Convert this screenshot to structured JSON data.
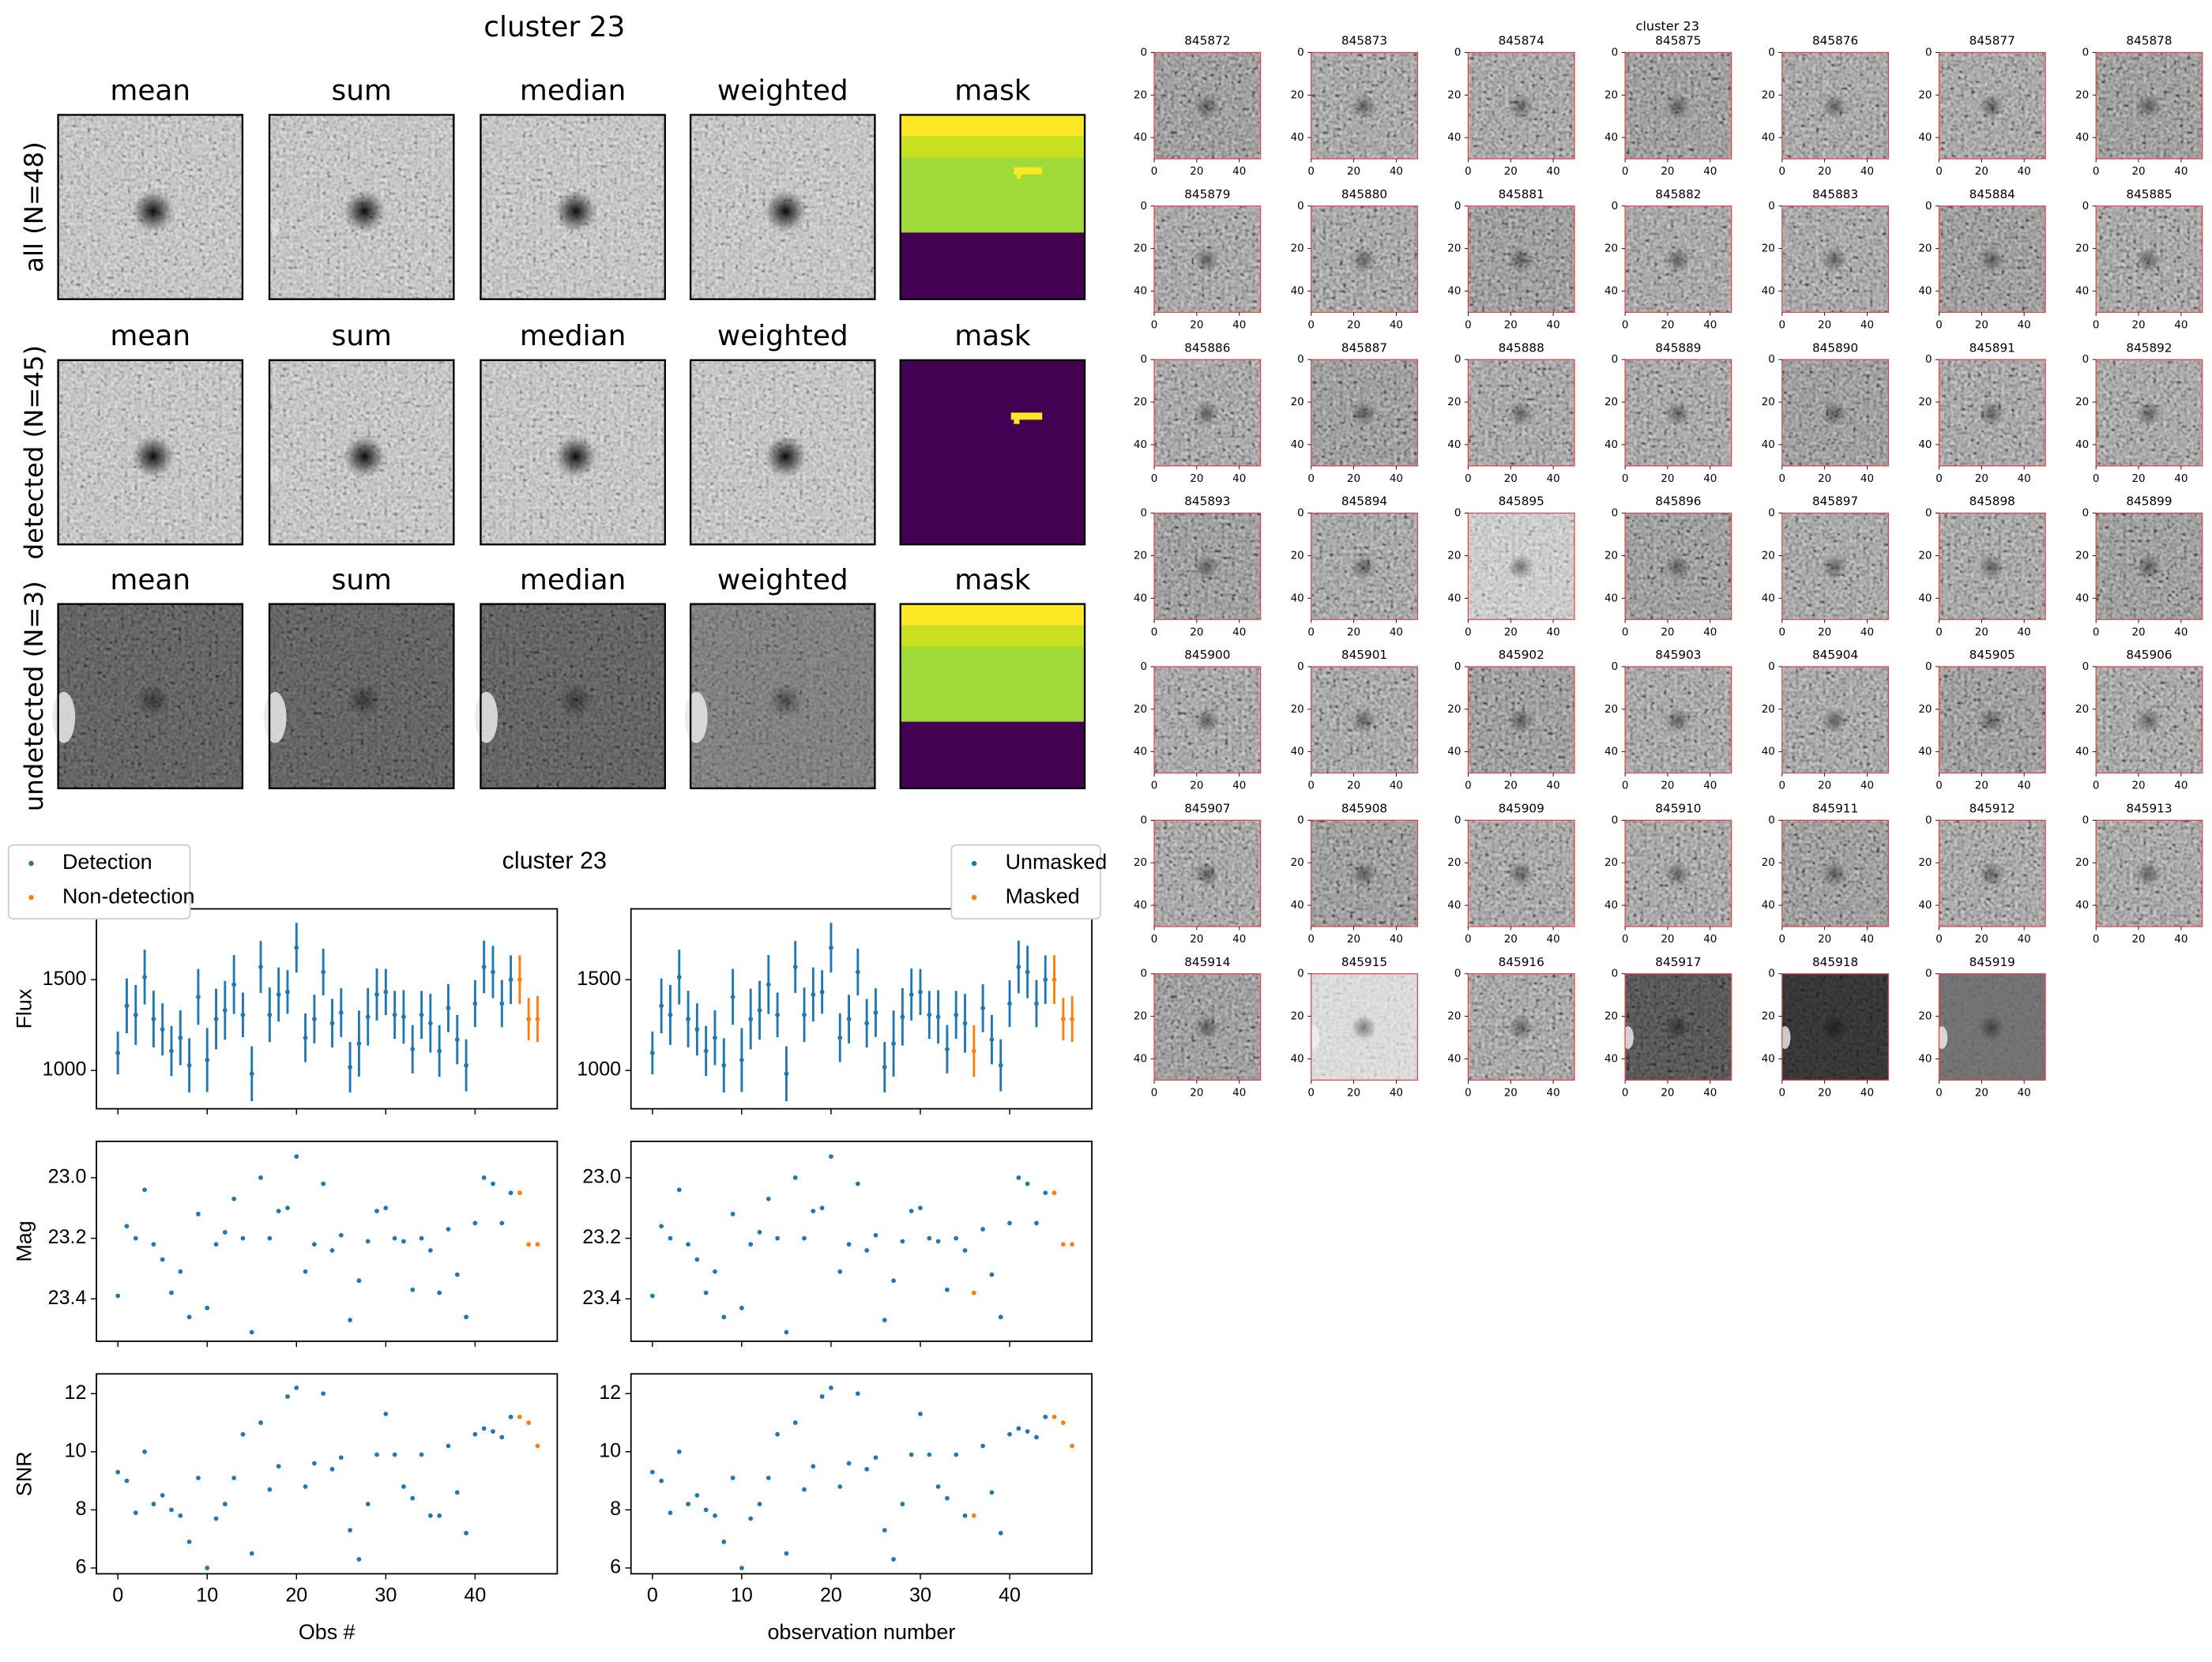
{
  "title": "cluster 23",
  "stamp_panels": {
    "columns": [
      "mean",
      "sum",
      "median",
      "weighted",
      "mask"
    ],
    "rows": [
      "all (N=48)",
      "detected (N=45)",
      "undetected (N=3)"
    ]
  },
  "thumbnails": {
    "title": "cluster 23",
    "ticks": [
      0,
      20,
      40
    ],
    "ids": [
      "845872",
      "845873",
      "845874",
      "845875",
      "845876",
      "845877",
      "845878",
      "845879",
      "845880",
      "845881",
      "845882",
      "845883",
      "845884",
      "845885",
      "845886",
      "845887",
      "845888",
      "845889",
      "845890",
      "845891",
      "845892",
      "845893",
      "845894",
      "845895",
      "845896",
      "845897",
      "845898",
      "845899",
      "845900",
      "845901",
      "845902",
      "845903",
      "845904",
      "845905",
      "845906",
      "845907",
      "845908",
      "845909",
      "845910",
      "845911",
      "845912",
      "845913",
      "845914",
      "845915",
      "845916",
      "845917",
      "845918",
      "845919"
    ]
  },
  "lightcurve_title": "cluster 23",
  "chart_data": [
    {
      "type": "errorbar",
      "ylabel": "Flux",
      "legend": "upper left",
      "xlim": [
        -2.4,
        49.2
      ],
      "xticks": [
        0,
        10,
        20,
        30,
        40
      ],
      "ylim": [
        789,
        1890
      ],
      "yticks": [
        1000,
        1500
      ],
      "series": [
        {
          "name": "Detection",
          "color": "#1f77b4",
          "x": [
            0,
            1,
            2,
            3,
            4,
            5,
            6,
            7,
            8,
            9,
            10,
            11,
            12,
            13,
            14,
            15,
            16,
            17,
            18,
            19,
            20,
            21,
            22,
            23,
            24,
            25,
            26,
            27,
            28,
            29,
            30,
            31,
            32,
            33,
            34,
            35,
            36,
            37,
            38,
            39,
            40,
            41,
            42,
            43,
            44
          ],
          "values": [
            1096,
            1356,
            1306,
            1514,
            1283,
            1226,
            1107,
            1180,
            1028,
            1405,
            1057,
            1283,
            1331,
            1473,
            1306,
            982,
            1570,
            1306,
            1418,
            1432,
            1676,
            1180,
            1283,
            1542,
            1260,
            1318,
            1018,
            1148,
            1295,
            1418,
            1432,
            1306,
            1295,
            1117,
            1306,
            1260,
            1107,
            1343,
            1170,
            1028,
            1368,
            1570,
            1542,
            1368,
            1500
          ],
          "errors": [
            118,
            151,
            165,
            151,
            156,
            144,
            138,
            151,
            149,
            154,
            176,
            167,
            162,
            162,
            123,
            151,
            143,
            150,
            149,
            120,
            137,
            134,
            134,
            129,
            134,
            134,
            139,
            182,
            158,
            143,
            127,
            132,
            147,
            133,
            132,
            162,
            142,
            132,
            136,
            143,
            129,
            145,
            144,
            130,
            134
          ]
        },
        {
          "name": "Non-detection",
          "color": "#ff7f0e",
          "x": [
            45,
            46,
            47
          ],
          "values": [
            1500,
            1283,
            1283
          ],
          "errors": [
            134,
            117,
            126
          ]
        }
      ]
    },
    {
      "type": "errorbar",
      "legend": "upper right",
      "xlim": [
        -2.4,
        49.2
      ],
      "xticks": [
        0,
        10,
        20,
        30,
        40
      ],
      "ylim": [
        789,
        1890
      ],
      "yticks": [
        1000,
        1500
      ],
      "series": [
        {
          "name": "Unmasked",
          "color": "#1f77b4",
          "x": [
            0,
            1,
            2,
            3,
            4,
            5,
            6,
            7,
            8,
            9,
            10,
            11,
            12,
            13,
            14,
            15,
            16,
            17,
            18,
            19,
            20,
            21,
            22,
            23,
            24,
            25,
            26,
            27,
            28,
            29,
            30,
            31,
            32,
            33,
            34,
            35,
            37,
            38,
            39,
            40,
            41,
            42,
            43,
            44
          ],
          "values": [
            1096,
            1356,
            1306,
            1514,
            1283,
            1226,
            1107,
            1180,
            1028,
            1405,
            1057,
            1283,
            1331,
            1473,
            1306,
            982,
            1570,
            1306,
            1418,
            1432,
            1676,
            1180,
            1283,
            1542,
            1260,
            1318,
            1018,
            1148,
            1295,
            1418,
            1432,
            1306,
            1295,
            1117,
            1306,
            1260,
            1343,
            1170,
            1028,
            1368,
            1570,
            1542,
            1368,
            1500
          ],
          "errors": [
            118,
            151,
            165,
            151,
            156,
            144,
            138,
            151,
            149,
            154,
            176,
            167,
            162,
            162,
            123,
            151,
            143,
            150,
            149,
            120,
            137,
            134,
            134,
            129,
            134,
            134,
            139,
            182,
            158,
            143,
            127,
            132,
            147,
            133,
            132,
            162,
            132,
            136,
            143,
            129,
            145,
            144,
            130,
            134
          ]
        },
        {
          "name": "Masked",
          "color": "#ff7f0e",
          "x": [
            36,
            45,
            46,
            47
          ],
          "values": [
            1107,
            1500,
            1283,
            1283
          ],
          "errors": [
            142,
            134,
            117,
            126
          ]
        }
      ]
    },
    {
      "type": "scatter",
      "ylabel": "Mag",
      "xlim": [
        -2.4,
        49.2
      ],
      "xticks": [
        0,
        10,
        20,
        30,
        40
      ],
      "ylim": [
        23.54,
        22.88
      ],
      "yticks": [
        {
          "value": 23,
          "label": "23.0"
        },
        23.2,
        23.4
      ],
      "series": [
        {
          "color": "#1f77b4",
          "x": [
            0,
            1,
            2,
            3,
            4,
            5,
            6,
            7,
            8,
            9,
            10,
            11,
            12,
            13,
            14,
            15,
            16,
            17,
            18,
            19,
            20,
            21,
            22,
            23,
            24,
            25,
            26,
            27,
            28,
            29,
            30,
            31,
            32,
            33,
            34,
            35,
            36,
            37,
            38,
            39,
            40,
            41,
            42,
            43,
            44
          ],
          "values": [
            23.39,
            23.16,
            23.2,
            23.04,
            23.22,
            23.27,
            23.38,
            23.31,
            23.46,
            23.12,
            23.43,
            23.22,
            23.18,
            23.07,
            23.2,
            23.51,
            23.0,
            23.2,
            23.11,
            23.1,
            22.93,
            23.31,
            23.22,
            23.02,
            23.24,
            23.19,
            23.47,
            23.34,
            23.21,
            23.11,
            23.1,
            23.2,
            23.21,
            23.37,
            23.2,
            23.24,
            23.38,
            23.17,
            23.32,
            23.46,
            23.15,
            23.0,
            23.02,
            23.15,
            23.05
          ]
        },
        {
          "color": "#ff7f0e",
          "x": [
            45,
            46,
            47
          ],
          "values": [
            23.05,
            23.22,
            23.22
          ]
        }
      ]
    },
    {
      "type": "scatter",
      "xlim": [
        -2.4,
        49.2
      ],
      "xticks": [
        0,
        10,
        20,
        30,
        40
      ],
      "ylim": [
        23.54,
        22.88
      ],
      "yticks": [
        {
          "value": 23,
          "label": "23.0"
        },
        23.2,
        23.4
      ],
      "series": [
        {
          "color": "#1f77b4",
          "x": [
            0,
            1,
            2,
            3,
            4,
            5,
            6,
            7,
            8,
            9,
            10,
            11,
            12,
            13,
            14,
            15,
            16,
            17,
            18,
            19,
            20,
            21,
            22,
            23,
            24,
            25,
            26,
            27,
            28,
            29,
            30,
            31,
            32,
            33,
            34,
            35,
            37,
            38,
            39,
            40,
            41,
            42,
            43,
            44
          ],
          "values": [
            23.39,
            23.16,
            23.2,
            23.04,
            23.22,
            23.27,
            23.38,
            23.31,
            23.46,
            23.12,
            23.43,
            23.22,
            23.18,
            23.07,
            23.2,
            23.51,
            23.0,
            23.2,
            23.11,
            23.1,
            22.93,
            23.31,
            23.22,
            23.02,
            23.24,
            23.19,
            23.47,
            23.34,
            23.21,
            23.11,
            23.1,
            23.2,
            23.21,
            23.37,
            23.2,
            23.24,
            23.17,
            23.32,
            23.46,
            23.15,
            23.0,
            23.02,
            23.15,
            23.05
          ]
        },
        {
          "color": "#ff7f0e",
          "x": [
            36,
            45,
            46,
            47
          ],
          "values": [
            23.38,
            23.05,
            23.22,
            23.22
          ]
        }
      ]
    },
    {
      "type": "scatter",
      "ylabel": "SNR",
      "xlabel": "Obs #",
      "xlim": [
        -2.4,
        49.2
      ],
      "xticks": [
        0,
        10,
        20,
        30,
        40
      ],
      "ylim": [
        5.8,
        12.68
      ],
      "yticks": [
        6,
        8,
        10,
        12
      ],
      "series": [
        {
          "color": "#1f77b4",
          "x": [
            0,
            1,
            2,
            3,
            4,
            5,
            6,
            7,
            8,
            9,
            10,
            11,
            12,
            13,
            14,
            15,
            16,
            17,
            18,
            19,
            20,
            21,
            22,
            23,
            24,
            25,
            26,
            27,
            28,
            29,
            30,
            31,
            32,
            33,
            34,
            35,
            36,
            37,
            38,
            39,
            40,
            41,
            42,
            43,
            44
          ],
          "values": [
            9.3,
            9.0,
            7.9,
            10.0,
            8.2,
            8.5,
            8.0,
            7.8,
            6.9,
            9.1,
            6.0,
            7.7,
            8.2,
            9.1,
            10.6,
            6.5,
            11.0,
            8.7,
            9.5,
            11.9,
            12.2,
            8.8,
            9.6,
            12.0,
            9.4,
            9.8,
            7.3,
            6.3,
            8.2,
            9.9,
            11.3,
            9.9,
            8.8,
            8.4,
            9.9,
            7.8,
            7.8,
            10.2,
            8.6,
            7.2,
            10.6,
            10.8,
            10.7,
            10.5,
            11.2
          ]
        },
        {
          "color": "#ff7f0e",
          "x": [
            45,
            46,
            47
          ],
          "values": [
            11.2,
            11.0,
            10.2
          ]
        }
      ]
    },
    {
      "type": "scatter",
      "xlabel": "observation number",
      "xlim": [
        -2.4,
        49.2
      ],
      "xticks": [
        0,
        10,
        20,
        30,
        40
      ],
      "ylim": [
        5.8,
        12.68
      ],
      "yticks": [
        6,
        8,
        10,
        12
      ],
      "series": [
        {
          "color": "#1f77b4",
          "x": [
            0,
            1,
            2,
            3,
            4,
            5,
            6,
            7,
            8,
            9,
            10,
            11,
            12,
            13,
            14,
            15,
            16,
            17,
            18,
            19,
            20,
            21,
            22,
            23,
            24,
            25,
            26,
            27,
            28,
            29,
            30,
            31,
            32,
            33,
            34,
            35,
            37,
            38,
            39,
            40,
            41,
            42,
            43,
            44
          ],
          "values": [
            9.3,
            9.0,
            7.9,
            10.0,
            8.2,
            8.5,
            8.0,
            7.8,
            6.9,
            9.1,
            6.0,
            7.7,
            8.2,
            9.1,
            10.6,
            6.5,
            11.0,
            8.7,
            9.5,
            11.9,
            12.2,
            8.8,
            9.6,
            12.0,
            9.4,
            9.8,
            7.3,
            6.3,
            8.2,
            9.9,
            11.3,
            9.9,
            8.8,
            8.4,
            9.9,
            7.8,
            10.2,
            8.6,
            7.2,
            10.6,
            10.8,
            10.7,
            10.5,
            11.2
          ]
        },
        {
          "color": "#ff7f0e",
          "x": [
            36,
            45,
            46,
            47
          ],
          "values": [
            7.8,
            11.2,
            11.0,
            10.2
          ]
        }
      ]
    }
  ]
}
